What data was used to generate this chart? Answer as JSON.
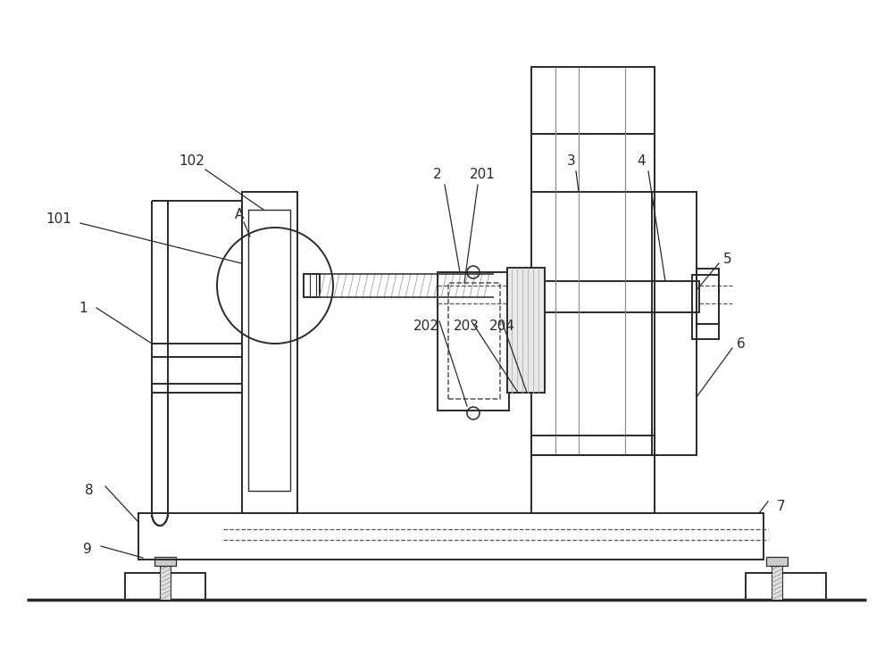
{
  "bg": "#ffffff",
  "lc": "#2a2a2a",
  "lw": 1.4,
  "hlw": 2.5,
  "dc": "#555555",
  "gc": "#888888",
  "lfs": 11
}
